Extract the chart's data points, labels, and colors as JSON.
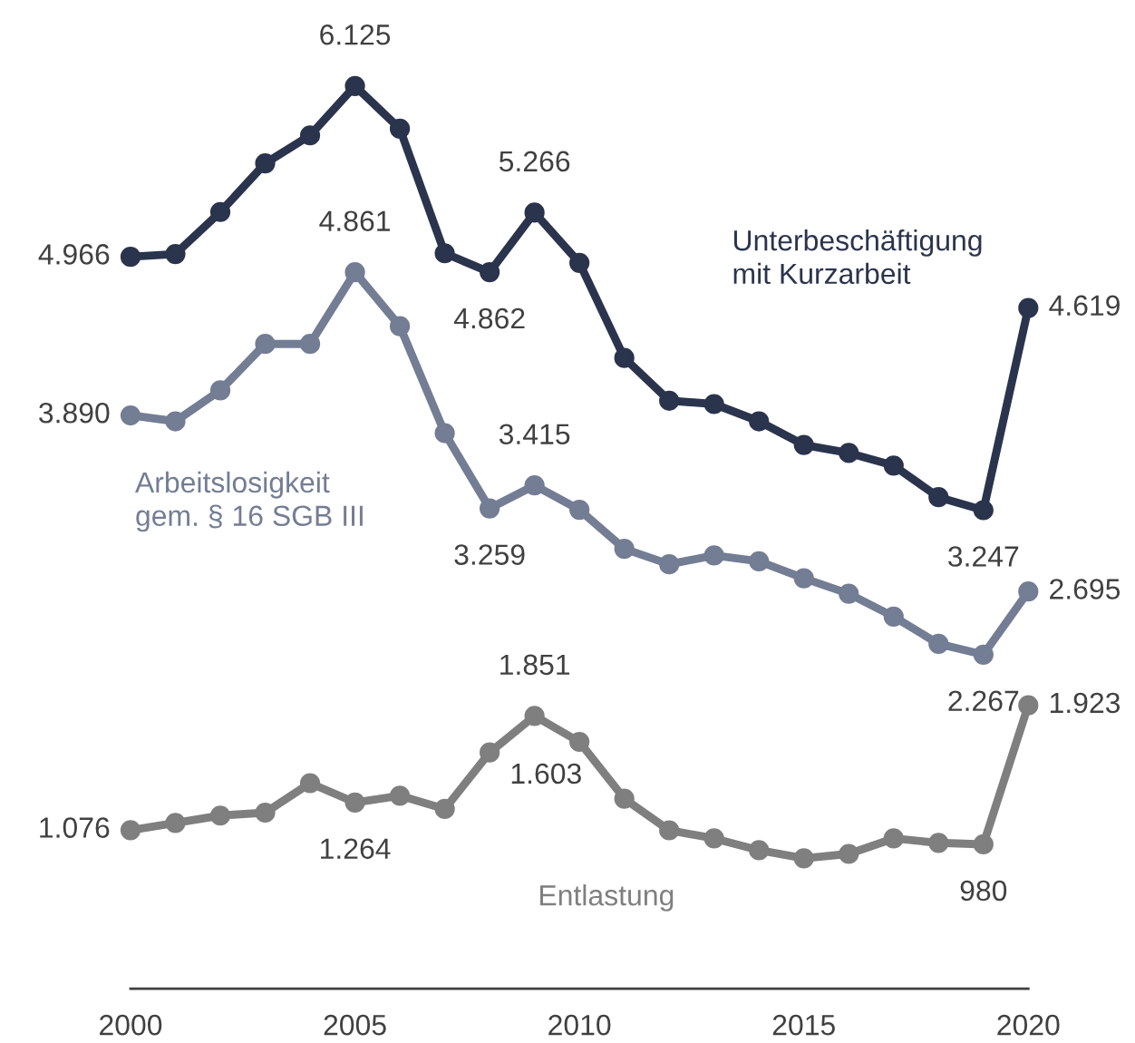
{
  "chart_data": {
    "type": "line",
    "x": [
      2000,
      2001,
      2002,
      2003,
      2004,
      2005,
      2006,
      2007,
      2008,
      2009,
      2010,
      2011,
      2012,
      2013,
      2014,
      2015,
      2016,
      2017,
      2018,
      2019,
      2020
    ],
    "series": [
      {
        "name": "Unterbeschäftigung mit Kurzarbeit",
        "color": "#2b344d",
        "values": [
          4966,
          4985,
          5270,
          5600,
          5790,
          6125,
          5835,
          4990,
          4862,
          5266,
          4925,
          4280,
          3990,
          3967,
          3850,
          3690,
          3635,
          3550,
          3335,
          3247,
          4619
        ],
        "value_labels": [
          "4.966",
          null,
          null,
          null,
          null,
          "6.125",
          null,
          null,
          "4.862",
          "5.266",
          null,
          null,
          null,
          null,
          null,
          null,
          null,
          null,
          null,
          "3.247",
          "4.619"
        ]
      },
      {
        "name": "Arbeitslosigkeit gem. § 16 SGB III",
        "color": "#737d94",
        "values": [
          3890,
          3850,
          4060,
          4375,
          4375,
          4861,
          4495,
          3770,
          3259,
          3415,
          3250,
          2985,
          2880,
          2940,
          2900,
          2785,
          2680,
          2525,
          2340,
          2267,
          2695
        ],
        "value_labels": [
          "3.890",
          null,
          null,
          null,
          null,
          "4.861",
          null,
          null,
          "3.259",
          "3.415",
          null,
          null,
          null,
          null,
          null,
          null,
          null,
          null,
          null,
          "2.267",
          "2.695"
        ]
      },
      {
        "name": "Entlastung",
        "color": "#7f7f7f",
        "values": [
          1076,
          1125,
          1175,
          1195,
          1395,
          1264,
          1310,
          1220,
          1603,
          1851,
          1675,
          1290,
          1075,
          1020,
          940,
          885,
          915,
          1020,
          990,
          980,
          1923
        ],
        "value_labels": [
          "1.076",
          null,
          null,
          null,
          null,
          "1.264",
          null,
          null,
          "1.603",
          "1.851",
          null,
          null,
          null,
          null,
          null,
          null,
          null,
          null,
          null,
          "980",
          "1.923"
        ]
      }
    ],
    "xlim": [
      2000,
      2020
    ],
    "xticks": [
      2000,
      2005,
      2010,
      2015,
      2020
    ],
    "tick_labels": "x",
    "marker": "circle",
    "line_style": "solid",
    "grid": false,
    "legend": false
  }
}
